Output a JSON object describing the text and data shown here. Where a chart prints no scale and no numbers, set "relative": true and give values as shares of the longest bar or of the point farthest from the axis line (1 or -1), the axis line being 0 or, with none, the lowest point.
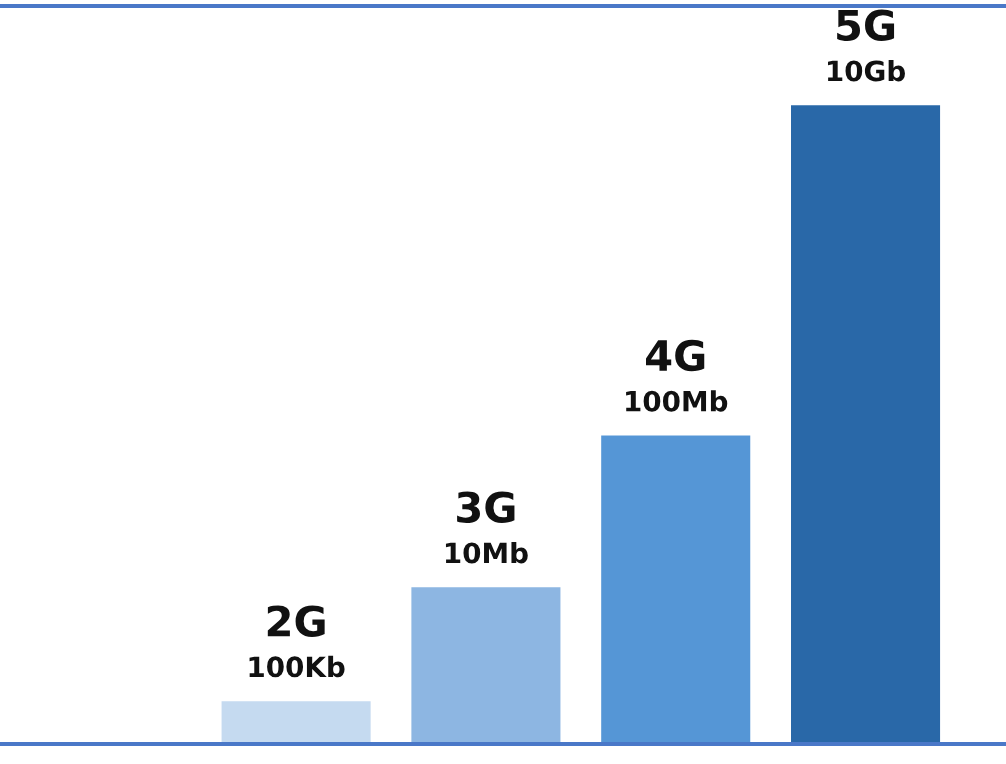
{
  "chart_data": {
    "type": "bar",
    "relative": true,
    "categories": [
      "2G",
      "3G",
      "4G",
      "5G"
    ],
    "values": [
      0.069,
      0.247,
      0.484,
      1
    ],
    "annotations": [
      {
        "text": "100Kb",
        "x": "2G",
        "y": 0.069
      },
      {
        "text": "10Mb",
        "x": "3G",
        "y": 0.247
      },
      {
        "text": "100Mb",
        "x": "4G",
        "y": 0.484
      },
      {
        "text": "10Gb",
        "x": "5G",
        "y": 1
      }
    ],
    "colors": [
      "#c5daf0",
      "#8db6e2",
      "#5596d6",
      "#2968a8"
    ],
    "legend": false
  }
}
